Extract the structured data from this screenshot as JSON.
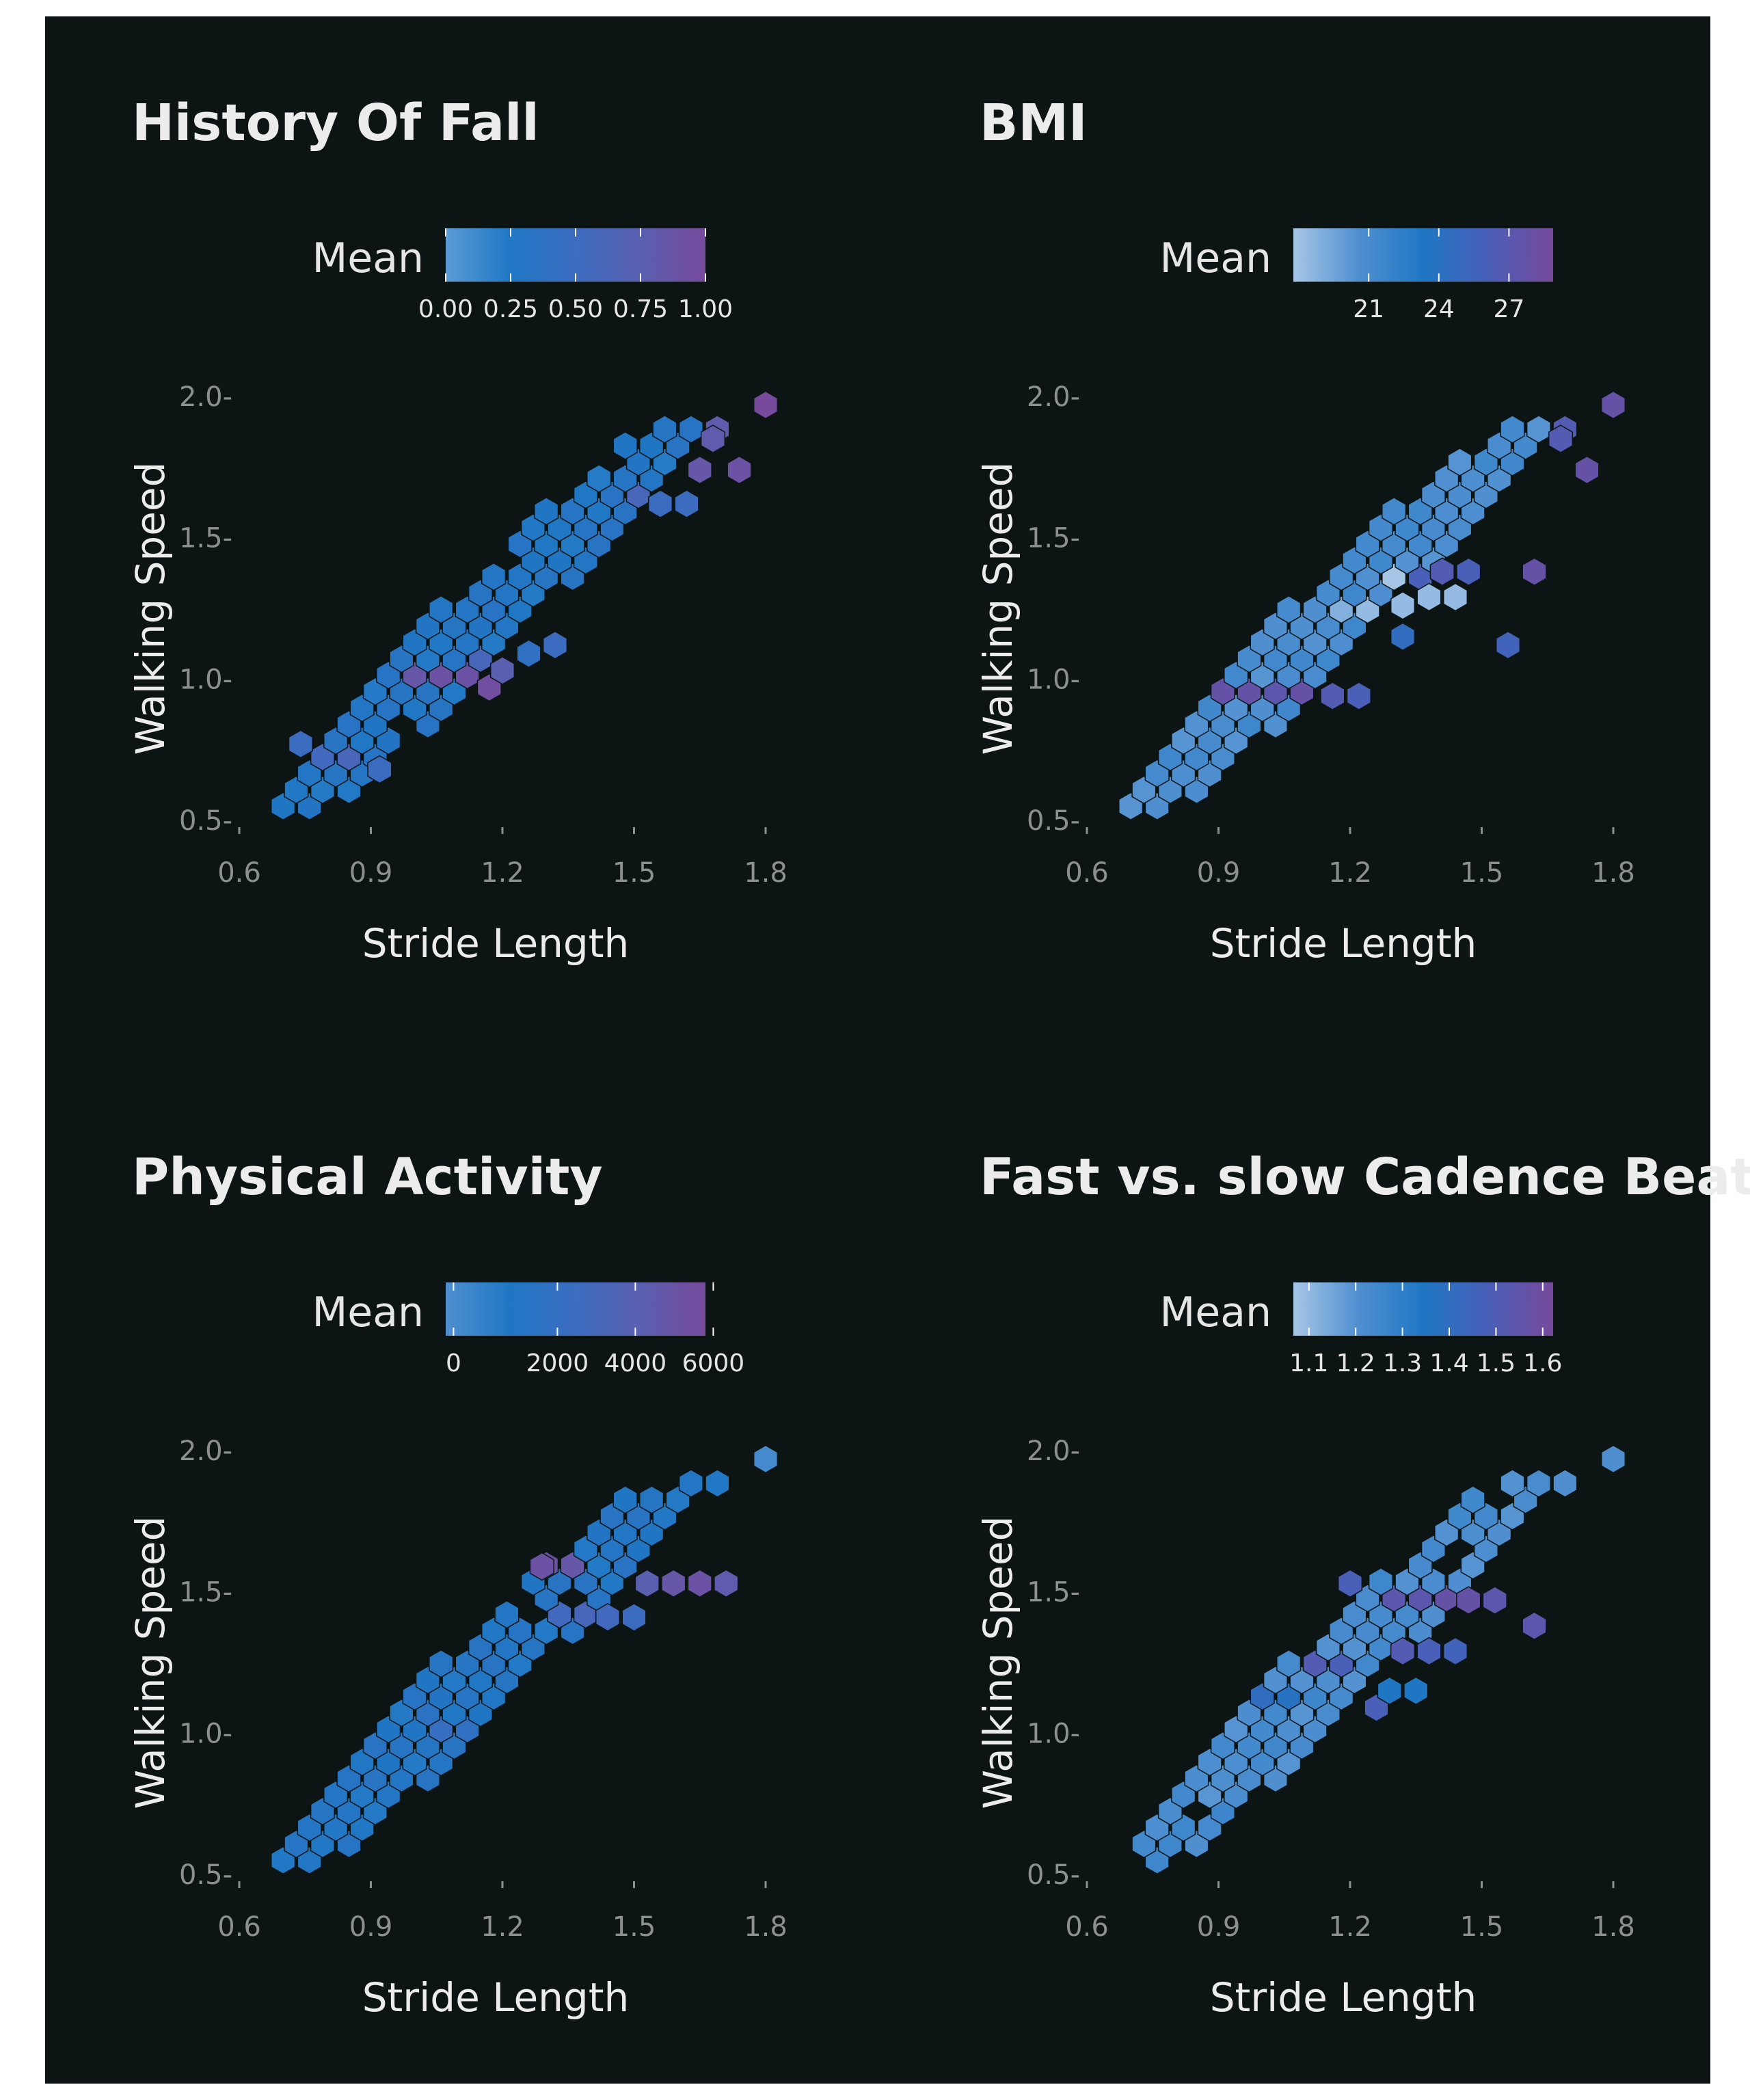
{
  "chart_data": [
    {
      "type": "hexbin",
      "title": "History Of Fall",
      "xlabel": "Stride Length",
      "ylabel": "Walking Speed",
      "xlim": [
        0.6,
        1.8
      ],
      "ylim": [
        0.5,
        2.0
      ],
      "xticks": [
        "0.6",
        "0.9",
        "1.2",
        "1.5",
        "1.8"
      ],
      "yticks": [
        "0.5-",
        "1.0-",
        "1.5-",
        "2.0-"
      ],
      "legend": {
        "title": "Mean",
        "position": "top",
        "colors": [
          "#5a9bd6",
          "#1f77c4",
          "#3c6cc0",
          "#5a5fb0",
          "#774a9c"
        ],
        "ticks": [
          "0.00",
          "0.25",
          "0.50",
          "0.75",
          "1.00"
        ],
        "tick_positions": [
          0,
          0.25,
          0.5,
          0.75,
          1.0
        ]
      },
      "highlights": [
        {
          "x": 1.05,
          "y": 1.0,
          "v": 0.9
        },
        {
          "x": 1.11,
          "y": 1.0,
          "v": 0.9
        },
        {
          "x": 1.17,
          "y": 0.97,
          "v": 0.95
        },
        {
          "x": 1.2,
          "y": 1.03,
          "v": 0.75
        },
        {
          "x": 1.14,
          "y": 1.06,
          "v": 0.6
        },
        {
          "x": 1.0,
          "y": 1.0,
          "v": 0.85
        },
        {
          "x": 0.74,
          "y": 0.77,
          "v": 0.5
        },
        {
          "x": 0.8,
          "y": 0.74,
          "v": 0.55
        },
        {
          "x": 0.86,
          "y": 0.71,
          "v": 0.6
        },
        {
          "x": 0.92,
          "y": 0.68,
          "v": 0.5
        },
        {
          "x": 1.65,
          "y": 1.74,
          "v": 0.85
        },
        {
          "x": 1.68,
          "y": 1.85,
          "v": 0.8
        },
        {
          "x": 1.8,
          "y": 1.97,
          "v": 1.0
        },
        {
          "x": 1.5,
          "y": 1.65,
          "v": 0.6
        },
        {
          "x": 1.56,
          "y": 1.62,
          "v": 0.5
        },
        {
          "x": 1.62,
          "y": 1.62,
          "v": 0.5
        },
        {
          "x": 1.74,
          "y": 1.74,
          "v": 0.9
        },
        {
          "x": 1.32,
          "y": 1.12,
          "v": 0.5
        },
        {
          "x": 1.26,
          "y": 1.09,
          "v": 0.4
        }
      ]
    },
    {
      "type": "hexbin",
      "title": "BMI",
      "xlabel": "Stride Length",
      "ylabel": "Walking Speed",
      "xlim": [
        0.6,
        1.8
      ],
      "ylim": [
        0.5,
        2.0
      ],
      "xticks": [
        "0.6",
        "0.9",
        "1.2",
        "1.5",
        "1.8"
      ],
      "yticks": [
        "0.5-",
        "1.0-",
        "1.5-",
        "2.0-"
      ],
      "legend": {
        "title": "Mean",
        "position": "top",
        "colors": [
          "#a7c6e6",
          "#4f8fd0",
          "#1f77c4",
          "#4a5fb8",
          "#774a9c"
        ],
        "ticks": [
          "21",
          "24",
          "27"
        ],
        "tick_positions": [
          0.29,
          0.56,
          0.83
        ]
      },
      "highlights": [
        {
          "x": 0.92,
          "y": 0.94,
          "v": 0.9
        },
        {
          "x": 0.98,
          "y": 0.94,
          "v": 0.9
        },
        {
          "x": 1.04,
          "y": 0.94,
          "v": 0.85
        },
        {
          "x": 1.1,
          "y": 0.94,
          "v": 0.9
        },
        {
          "x": 1.16,
          "y": 0.94,
          "v": 0.8
        },
        {
          "x": 1.22,
          "y": 0.94,
          "v": 0.75
        },
        {
          "x": 1.26,
          "y": 1.26,
          "v": 0.05
        },
        {
          "x": 1.32,
          "y": 1.26,
          "v": 0.05
        },
        {
          "x": 1.38,
          "y": 1.29,
          "v": 0.05
        },
        {
          "x": 1.44,
          "y": 1.29,
          "v": 0.05
        },
        {
          "x": 1.35,
          "y": 1.38,
          "v": 0.75
        },
        {
          "x": 1.41,
          "y": 1.38,
          "v": 0.8
        },
        {
          "x": 1.47,
          "y": 1.38,
          "v": 0.75
        },
        {
          "x": 1.29,
          "y": 1.35,
          "v": 0.0
        },
        {
          "x": 1.2,
          "y": 1.26,
          "v": 0.1
        },
        {
          "x": 1.68,
          "y": 1.85,
          "v": 0.8
        },
        {
          "x": 1.8,
          "y": 1.97,
          "v": 0.9
        },
        {
          "x": 1.62,
          "y": 1.38,
          "v": 0.9
        },
        {
          "x": 1.74,
          "y": 1.74,
          "v": 0.9
        },
        {
          "x": 1.56,
          "y": 1.12,
          "v": 0.7
        },
        {
          "x": 1.32,
          "y": 1.15,
          "v": 0.6
        }
      ]
    },
    {
      "type": "hexbin",
      "title": "Physical Activity",
      "xlabel": "Stride Length",
      "ylabel": "Walking Speed",
      "xlim": [
        0.6,
        1.8
      ],
      "ylim": [
        0.5,
        2.0
      ],
      "xticks": [
        "0.6",
        "0.9",
        "1.2",
        "1.5",
        "1.8"
      ],
      "yticks": [
        "0.5-",
        "1.0-",
        "1.5-",
        "2.0-"
      ],
      "legend": {
        "title": "Mean",
        "position": "top",
        "colors": [
          "#4f8fd0",
          "#1f77c4",
          "#3c6cc0",
          "#5a5fb0",
          "#774a9c"
        ],
        "ticks": [
          "0",
          "2000",
          "4000",
          "6000"
        ],
        "tick_positions": [
          0.03,
          0.43,
          0.73,
          1.03
        ]
      },
      "highlights": [
        {
          "x": 1.29,
          "y": 1.59,
          "v": 0.9
        },
        {
          "x": 1.35,
          "y": 1.59,
          "v": 0.85
        },
        {
          "x": 1.59,
          "y": 1.53,
          "v": 0.85
        },
        {
          "x": 1.65,
          "y": 1.53,
          "v": 0.9
        },
        {
          "x": 1.53,
          "y": 1.53,
          "v": 0.75
        },
        {
          "x": 1.71,
          "y": 1.53,
          "v": 0.8
        },
        {
          "x": 1.26,
          "y": 1.41,
          "v": 0.6
        },
        {
          "x": 1.32,
          "y": 1.41,
          "v": 0.55
        },
        {
          "x": 1.38,
          "y": 1.41,
          "v": 0.6
        },
        {
          "x": 1.44,
          "y": 1.41,
          "v": 0.55
        },
        {
          "x": 1.5,
          "y": 1.41,
          "v": 0.5
        },
        {
          "x": 1.08,
          "y": 1.0,
          "v": 0.45
        },
        {
          "x": 1.14,
          "y": 1.0,
          "v": 0.4
        },
        {
          "x": 1.8,
          "y": 1.97,
          "v": 0.05
        },
        {
          "x": 1.02,
          "y": 1.06,
          "v": 0.35
        }
      ]
    },
    {
      "type": "hexbin",
      "title": "Fast vs. slow Cadence Beats",
      "xlabel": "Stride Length",
      "ylabel": "Walking Speed",
      "xlim": [
        0.6,
        1.8
      ],
      "ylim": [
        0.5,
        2.0
      ],
      "xticks": [
        "0.6",
        "0.9",
        "1.2",
        "1.5",
        "1.8"
      ],
      "yticks": [
        "0.5-",
        "1.0-",
        "1.5-",
        "2.0-"
      ],
      "legend": {
        "title": "Mean",
        "position": "top",
        "colors": [
          "#a7c6e6",
          "#4f8fd0",
          "#1f77c4",
          "#4a5fb8",
          "#774a9c"
        ],
        "ticks": [
          "1.1",
          "1.2",
          "1.3",
          "1.4",
          "1.5",
          "1.6"
        ],
        "tick_positions": [
          0.06,
          0.24,
          0.42,
          0.6,
          0.78,
          0.96
        ]
      },
      "highlights": [
        {
          "x": 1.29,
          "y": 1.47,
          "v": 0.85
        },
        {
          "x": 1.35,
          "y": 1.47,
          "v": 0.85
        },
        {
          "x": 1.41,
          "y": 1.47,
          "v": 0.9
        },
        {
          "x": 1.47,
          "y": 1.47,
          "v": 0.9
        },
        {
          "x": 1.53,
          "y": 1.47,
          "v": 0.85
        },
        {
          "x": 1.32,
          "y": 1.29,
          "v": 0.8
        },
        {
          "x": 1.38,
          "y": 1.29,
          "v": 0.75
        },
        {
          "x": 1.44,
          "y": 1.29,
          "v": 0.7
        },
        {
          "x": 1.11,
          "y": 1.26,
          "v": 0.8
        },
        {
          "x": 1.17,
          "y": 1.26,
          "v": 0.75
        },
        {
          "x": 1.2,
          "y": 1.53,
          "v": 0.75
        },
        {
          "x": 1.62,
          "y": 1.38,
          "v": 0.85
        },
        {
          "x": 1.26,
          "y": 1.09,
          "v": 0.75
        },
        {
          "x": 1.29,
          "y": 1.15,
          "v": 0.5
        },
        {
          "x": 1.35,
          "y": 1.15,
          "v": 0.5
        },
        {
          "x": 1.8,
          "y": 1.97,
          "v": 0.25
        },
        {
          "x": 1.02,
          "y": 1.12,
          "v": 0.6
        },
        {
          "x": 1.08,
          "y": 1.12,
          "v": 0.55
        }
      ]
    }
  ]
}
